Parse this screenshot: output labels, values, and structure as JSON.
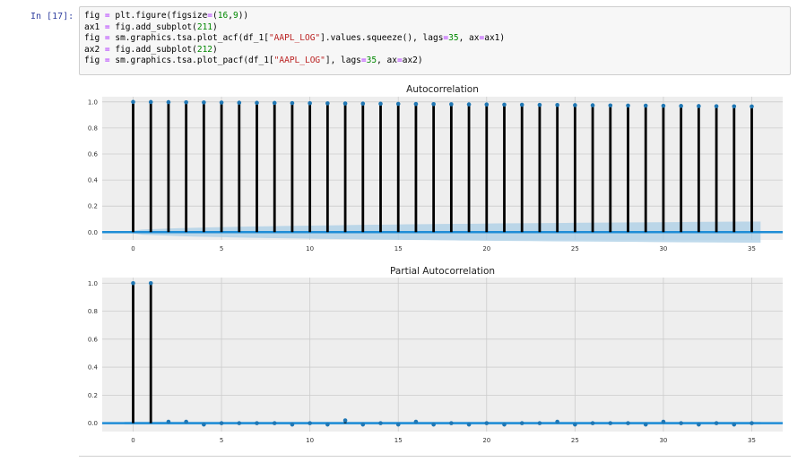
{
  "cell": {
    "prompt": "In [17]:",
    "lines": [
      [
        [
          "fig ",
          ""
        ],
        [
          "=",
          "op"
        ],
        [
          " plt.figure(figsize",
          ""
        ],
        [
          "=",
          "op"
        ],
        [
          "(",
          ""
        ],
        [
          "16",
          "num"
        ],
        [
          ",",
          ""
        ],
        [
          "9",
          "num"
        ],
        [
          "))",
          ""
        ]
      ],
      [
        [
          "ax1 ",
          ""
        ],
        [
          "=",
          "op"
        ],
        [
          " fig.add_subplot(",
          ""
        ],
        [
          "211",
          "num"
        ],
        [
          ")",
          ""
        ]
      ],
      [
        [
          "fig ",
          ""
        ],
        [
          "=",
          "op"
        ],
        [
          " sm.graphics.tsa.plot_acf(df_1[",
          ""
        ],
        [
          "\"AAPL_LOG\"",
          "str"
        ],
        [
          "].values.squeeze(), lags",
          ""
        ],
        [
          "=",
          "op"
        ],
        [
          "35",
          "num"
        ],
        [
          ", ax",
          ""
        ],
        [
          "=",
          "op"
        ],
        [
          "ax1)",
          ""
        ]
      ],
      [
        [
          "ax2 ",
          ""
        ],
        [
          "=",
          "op"
        ],
        [
          " fig.add_subplot(",
          ""
        ],
        [
          "212",
          "num"
        ],
        [
          ")",
          ""
        ]
      ],
      [
        [
          "fig ",
          ""
        ],
        [
          "=",
          "op"
        ],
        [
          " sm.graphics.tsa.plot_pacf(df_1[",
          ""
        ],
        [
          "\"AAPL_LOG\"",
          "str"
        ],
        [
          "], lags",
          ""
        ],
        [
          "=",
          "op"
        ],
        [
          "35",
          "num"
        ],
        [
          ", ax",
          ""
        ],
        [
          "=",
          "op"
        ],
        [
          "ax2)",
          ""
        ]
      ]
    ]
  },
  "colors": {
    "stem": "#000000",
    "marker": "#1f77b4",
    "baseline": "#1f8dd6",
    "confidence_band": "#a9cde6",
    "plot_bg": "#eeeeee",
    "grid": "#cccccc"
  },
  "chart_data": [
    {
      "type": "stem",
      "title": "Autocorrelation",
      "xlabel": "",
      "ylabel": "",
      "xlim": [
        -1.75,
        36.75
      ],
      "ylim": [
        -0.06,
        1.04
      ],
      "xticks": [
        0,
        5,
        10,
        15,
        20,
        25,
        30,
        35
      ],
      "yticks": [
        "0.0",
        "0.2",
        "0.4",
        "0.6",
        "0.8",
        "1.0"
      ],
      "grid": true,
      "x": [
        0,
        1,
        2,
        3,
        4,
        5,
        6,
        7,
        8,
        9,
        10,
        11,
        12,
        13,
        14,
        15,
        16,
        17,
        18,
        19,
        20,
        21,
        22,
        23,
        24,
        25,
        26,
        27,
        28,
        29,
        30,
        31,
        32,
        33,
        34,
        35
      ],
      "values": [
        1.0,
        0.999,
        0.998,
        0.997,
        0.996,
        0.995,
        0.994,
        0.993,
        0.992,
        0.991,
        0.99,
        0.989,
        0.988,
        0.987,
        0.986,
        0.985,
        0.984,
        0.983,
        0.982,
        0.981,
        0.98,
        0.979,
        0.978,
        0.977,
        0.976,
        0.975,
        0.974,
        0.973,
        0.972,
        0.971,
        0.97,
        0.969,
        0.968,
        0.967,
        0.966,
        0.965
      ],
      "confidence_upper": [
        0.0,
        0.02,
        0.025,
        0.03,
        0.034,
        0.037,
        0.04,
        0.043,
        0.045,
        0.047,
        0.049,
        0.051,
        0.053,
        0.055,
        0.057,
        0.058,
        0.06,
        0.061,
        0.063,
        0.064,
        0.065,
        0.067,
        0.068,
        0.069,
        0.07,
        0.071,
        0.072,
        0.073,
        0.074,
        0.075,
        0.076,
        0.077,
        0.078,
        0.079,
        0.08,
        0.081
      ]
    },
    {
      "type": "stem",
      "title": "Partial Autocorrelation",
      "xlabel": "",
      "ylabel": "",
      "xlim": [
        -1.75,
        36.75
      ],
      "ylim": [
        -0.06,
        1.04
      ],
      "xticks": [
        0,
        5,
        10,
        15,
        20,
        25,
        30,
        35
      ],
      "yticks": [
        "0.0",
        "0.2",
        "0.4",
        "0.6",
        "0.8",
        "1.0"
      ],
      "grid": true,
      "x": [
        0,
        1,
        2,
        3,
        4,
        5,
        6,
        7,
        8,
        9,
        10,
        11,
        12,
        13,
        14,
        15,
        16,
        17,
        18,
        19,
        20,
        21,
        22,
        23,
        24,
        25,
        26,
        27,
        28,
        29,
        30,
        31,
        32,
        33,
        34,
        35
      ],
      "values": [
        1.0,
        1.0,
        0.01,
        0.01,
        -0.01,
        0.0,
        0.0,
        0.0,
        0.0,
        -0.01,
        0.0,
        -0.01,
        0.02,
        -0.01,
        0.0,
        -0.01,
        0.01,
        -0.01,
        0.0,
        -0.01,
        0.0,
        -0.01,
        0.0,
        0.0,
        0.01,
        -0.01,
        0.0,
        0.0,
        0.0,
        -0.01,
        0.01,
        0.0,
        -0.01,
        0.0,
        -0.01,
        0.0
      ],
      "confidence_upper": [
        0.01,
        0.01,
        0.01,
        0.01,
        0.01,
        0.01,
        0.01,
        0.01,
        0.01,
        0.01,
        0.01,
        0.01,
        0.01,
        0.01,
        0.01,
        0.01,
        0.01,
        0.01,
        0.01,
        0.01,
        0.01,
        0.01,
        0.01,
        0.01,
        0.01,
        0.01,
        0.01,
        0.01,
        0.01,
        0.01,
        0.01,
        0.01,
        0.01,
        0.01,
        0.01,
        0.01
      ]
    }
  ]
}
